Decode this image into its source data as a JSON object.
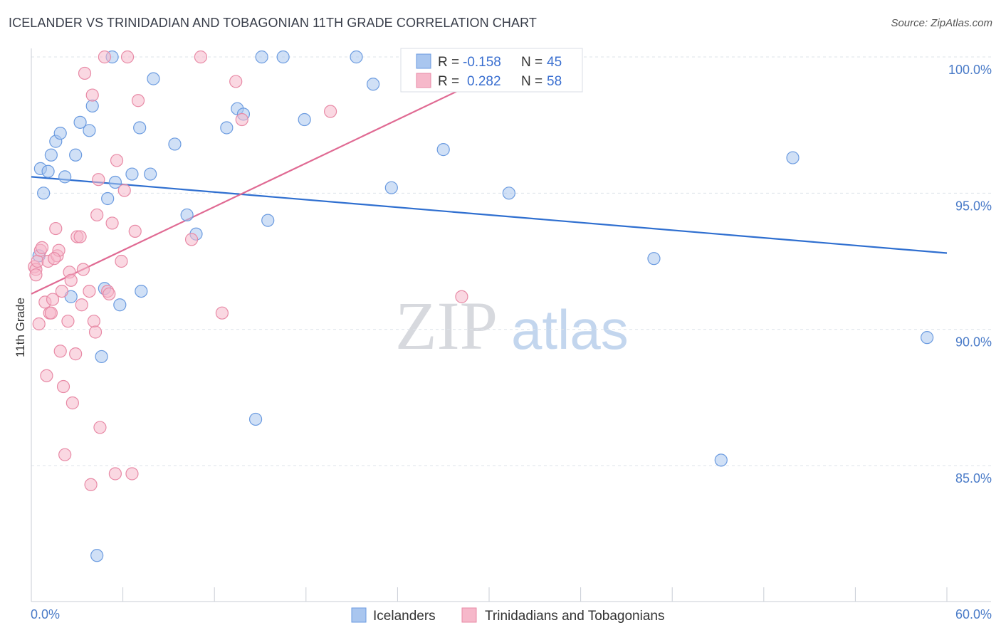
{
  "title": "ICELANDER VS TRINIDADIAN AND TOBAGONIAN 11TH GRADE CORRELATION CHART",
  "source": "Source: ZipAtlas.com",
  "watermark": {
    "zip": "ZIP",
    "atlas": "atlas"
  },
  "colors": {
    "blue_fill": "#a9c6ef",
    "blue_stroke": "#6b9be0",
    "blue_line": "#2f6fd0",
    "pink_fill": "#f6b8ca",
    "pink_stroke": "#e88aa6",
    "pink_line": "#e06a93",
    "grid": "#dde3ea",
    "axis_text": "#4a7bc8"
  },
  "legend": {
    "rows": [
      {
        "r_label": "R =",
        "r_value": "-0.158",
        "n_label": "N =",
        "n_value": "45",
        "series": "blue"
      },
      {
        "r_label": "R =",
        "r_value": "0.282",
        "n_label": "N =",
        "n_value": "58",
        "series": "pink"
      }
    ]
  },
  "chart_data": {
    "type": "scatter",
    "title": "ICELANDER VS TRINIDADIAN AND TOBAGONIAN 11TH GRADE CORRELATION CHART",
    "xlabel": "",
    "ylabel": "11th Grade",
    "xlim": [
      0,
      60
    ],
    "ylim": [
      80,
      100.5
    ],
    "x_tick_labels": [
      "0.0%",
      "60.0%"
    ],
    "y_ticks": [
      85,
      90,
      95,
      100
    ],
    "y_tick_labels": [
      "85.0%",
      "90.0%",
      "95.0%",
      "100.0%"
    ],
    "grid": true,
    "series": [
      {
        "name": "Icelanders",
        "color": "blue",
        "r": -0.158,
        "n": 45,
        "trend": {
          "x0": 0.0,
          "y0": 95.6,
          "x1": 60.0,
          "y1": 92.8
        },
        "points": [
          [
            0.5,
            92.7
          ],
          [
            0.6,
            95.9
          ],
          [
            0.8,
            95.0
          ],
          [
            1.1,
            95.8
          ],
          [
            1.3,
            96.4
          ],
          [
            1.6,
            96.9
          ],
          [
            1.9,
            97.2
          ],
          [
            2.2,
            95.6
          ],
          [
            2.6,
            91.2
          ],
          [
            2.9,
            96.4
          ],
          [
            3.2,
            97.6
          ],
          [
            3.8,
            97.3
          ],
          [
            4.0,
            98.2
          ],
          [
            4.6,
            89.0
          ],
          [
            4.8,
            91.5
          ],
          [
            5.0,
            94.8
          ],
          [
            5.3,
            100.0
          ],
          [
            5.5,
            95.4
          ],
          [
            5.8,
            90.9
          ],
          [
            6.6,
            95.7
          ],
          [
            7.1,
            97.4
          ],
          [
            7.2,
            91.4
          ],
          [
            7.8,
            95.7
          ],
          [
            8.0,
            99.2
          ],
          [
            9.4,
            96.8
          ],
          [
            10.2,
            94.2
          ],
          [
            10.8,
            93.5
          ],
          [
            12.8,
            97.4
          ],
          [
            13.5,
            98.1
          ],
          [
            13.9,
            97.9
          ],
          [
            14.7,
            86.7
          ],
          [
            15.1,
            100.0
          ],
          [
            15.5,
            94.0
          ],
          [
            16.5,
            100.0
          ],
          [
            17.9,
            97.7
          ],
          [
            21.3,
            100.0
          ],
          [
            22.4,
            99.0
          ],
          [
            23.6,
            95.2
          ],
          [
            27.0,
            96.6
          ],
          [
            31.3,
            95.0
          ],
          [
            40.8,
            92.6
          ],
          [
            45.2,
            85.2
          ],
          [
            49.9,
            96.3
          ],
          [
            58.7,
            89.7
          ],
          [
            4.3,
            81.7
          ]
        ]
      },
      {
        "name": "Trinidadians and Tobagonians",
        "color": "pink",
        "r": 0.282,
        "n": 58,
        "trend": {
          "x0": 0.0,
          "y0": 91.3,
          "x1": 60.0,
          "y1": 107.3,
          "solid_until": 30.0
        },
        "points": [
          [
            0.2,
            92.3
          ],
          [
            0.3,
            92.2
          ],
          [
            0.4,
            92.5
          ],
          [
            0.5,
            90.2
          ],
          [
            0.6,
            92.9
          ],
          [
            0.7,
            93.0
          ],
          [
            0.9,
            91.0
          ],
          [
            1.0,
            88.3
          ],
          [
            1.1,
            92.5
          ],
          [
            1.2,
            90.6
          ],
          [
            1.4,
            91.1
          ],
          [
            1.6,
            93.7
          ],
          [
            1.7,
            92.7
          ],
          [
            1.8,
            92.9
          ],
          [
            1.9,
            89.2
          ],
          [
            2.1,
            87.9
          ],
          [
            2.2,
            85.4
          ],
          [
            2.4,
            90.3
          ],
          [
            2.5,
            92.1
          ],
          [
            2.6,
            91.8
          ],
          [
            2.7,
            87.3
          ],
          [
            2.9,
            89.1
          ],
          [
            3.0,
            93.4
          ],
          [
            3.2,
            93.4
          ],
          [
            3.3,
            90.9
          ],
          [
            3.4,
            92.2
          ],
          [
            3.5,
            99.4
          ],
          [
            3.8,
            91.4
          ],
          [
            3.9,
            84.3
          ],
          [
            4.0,
            98.6
          ],
          [
            4.1,
            90.3
          ],
          [
            4.2,
            89.9
          ],
          [
            4.3,
            94.2
          ],
          [
            4.4,
            95.5
          ],
          [
            4.5,
            86.4
          ],
          [
            5.0,
            91.4
          ],
          [
            5.1,
            91.3
          ],
          [
            5.3,
            93.9
          ],
          [
            5.5,
            84.7
          ],
          [
            5.6,
            96.2
          ],
          [
            5.9,
            92.5
          ],
          [
            6.1,
            95.1
          ],
          [
            6.3,
            100.0
          ],
          [
            6.6,
            84.7
          ],
          [
            6.8,
            93.6
          ],
          [
            7.0,
            98.4
          ],
          [
            10.5,
            93.3
          ],
          [
            11.1,
            100.0
          ],
          [
            12.5,
            90.6
          ],
          [
            13.4,
            99.1
          ],
          [
            13.8,
            97.7
          ],
          [
            19.6,
            98.0
          ],
          [
            28.2,
            91.2
          ],
          [
            4.8,
            100.0
          ],
          [
            0.3,
            92.0
          ],
          [
            1.3,
            90.6
          ],
          [
            2.0,
            91.4
          ],
          [
            1.5,
            92.6
          ]
        ]
      }
    ]
  },
  "bottom_legend": [
    "Icelanders",
    "Trinidadians and Tobagonians"
  ]
}
